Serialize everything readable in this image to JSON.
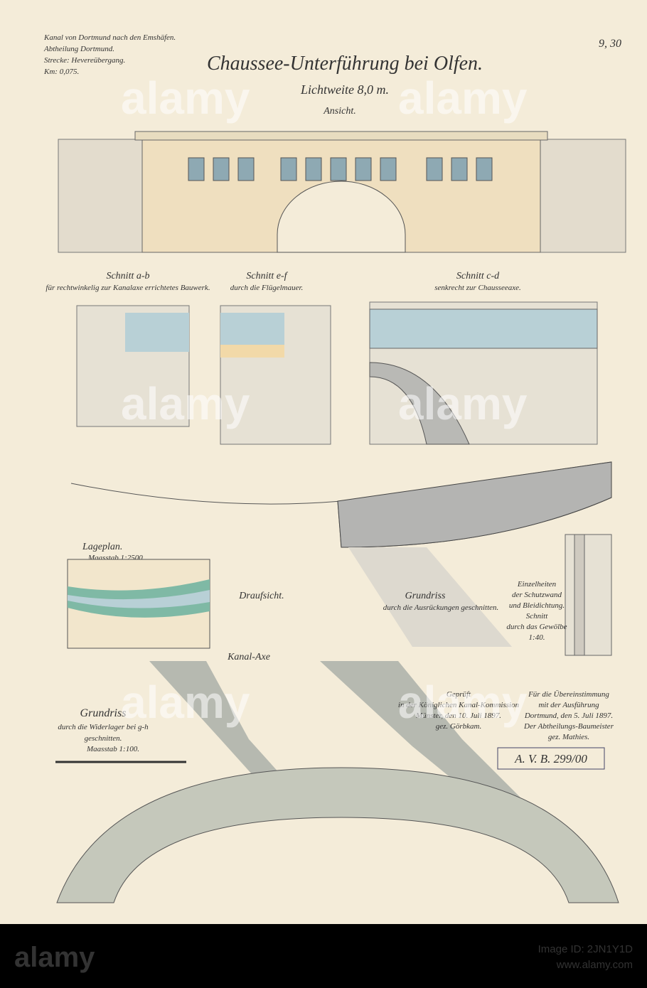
{
  "header": {
    "lines": [
      "Kanal von Dortmund nach den Emshäfen.",
      "Abtheilung Dortmund.",
      "Strecke: Hevereübergang.",
      "Km: 0,075."
    ],
    "sheet_number": "9, 30",
    "title": "Chaussee-Unterführung bei Olfen.",
    "subtitle": "Lichtweite 8,0 m."
  },
  "views": {
    "elevation": "Ansicht.",
    "section_ab": {
      "title": "Schnitt a-b",
      "note": "für rechtwinkelig zur Kanalaxe errichtetes Bauwerk."
    },
    "section_ef": {
      "title": "Schnitt e-f",
      "note": "durch die Flügelmauer."
    },
    "section_cd": {
      "title": "Schnitt c-d",
      "note": "senkrecht zur Chausseeaxe."
    },
    "site_plan": {
      "title": "Lageplan.",
      "scale": "Maasstab 1:2500."
    },
    "top_view": "Draufsicht.",
    "plan_upper": {
      "title": "Grundriss",
      "note": "durch die Ausrückungen geschnitten."
    },
    "details": [
      "Einzelheiten",
      "der Schutzwand",
      "und Bleidichtung.",
      "Schnitt",
      "durch das Gewölbe",
      "1:40."
    ],
    "canal_axis": "Kanal-Axe",
    "plan_lower": {
      "title": "Grundriss",
      "note": [
        "durch die Widerlager bei g-h",
        "geschnitten."
      ],
      "scale": "Maasstab 1:100."
    }
  },
  "approvals": {
    "checked": [
      "Geprüft",
      "in der Königlichen Kanal-Kommission",
      "Münster, den 10. Juli 1897.",
      "gez. Görbkam."
    ],
    "conformity": [
      "Für die Übereinstimmung",
      "mit der Ausführung",
      "Dortmund, den 5. Juli 1897.",
      "Der Abtheilungs-Baumeister",
      "gez. Mathies."
    ],
    "stamp": "A. V. B. 299/00"
  },
  "watermark": {
    "brand": "alamy",
    "image_id": "Image ID: 2JN1Y1D",
    "site": "www.alamy.com"
  }
}
